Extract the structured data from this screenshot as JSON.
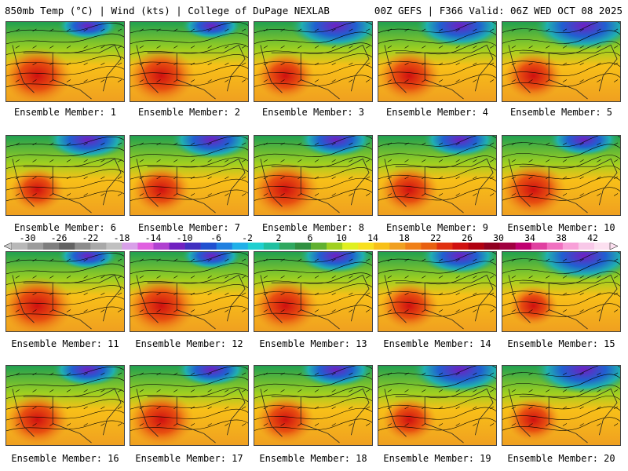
{
  "header": {
    "left": "850mb Temp (°C) | Wind (kts) | College of DuPage NEXLAB",
    "right": "00Z GEFS | F366 Valid: 06Z WED OCT 08 2025"
  },
  "colorbar": {
    "ticks": [
      "-30",
      "-26",
      "-22",
      "-18",
      "-14",
      "-10",
      "-6",
      "-2",
      "2",
      "6",
      "10",
      "14",
      "18",
      "22",
      "26",
      "30",
      "34",
      "38",
      "42"
    ],
    "colors": [
      "#b8b8b8",
      "#9c9c9c",
      "#7e7e7e",
      "#626262",
      "#8c8c8c",
      "#a8a8a8",
      "#c0c0c0",
      "#d8a0e8",
      "#e060e0",
      "#b040d0",
      "#7020c0",
      "#4030c0",
      "#2050d0",
      "#2080e0",
      "#20b0e8",
      "#20d0d0",
      "#20c0a0",
      "#30a860",
      "#309040",
      "#60b030",
      "#a0d020",
      "#e0f020",
      "#f8e020",
      "#f8c018",
      "#f0a020",
      "#f08018",
      "#e86010",
      "#e03010",
      "#d01010",
      "#b00010",
      "#900020",
      "#a00040",
      "#c00070",
      "#e040a0",
      "#f070c0",
      "#f8a0d8",
      "#f8c8e8",
      "#fce0f0"
    ]
  },
  "panels": [
    {
      "label": "Ensemble Member: 1",
      "cold": 0.3,
      "warm": 0.85
    },
    {
      "label": "Ensemble Member: 2",
      "cold": 0.3,
      "warm": 0.8
    },
    {
      "label": "Ensemble Member: 3",
      "cold": 0.75,
      "warm": 0.6
    },
    {
      "label": "Ensemble Member: 4",
      "cold": 0.7,
      "warm": 0.7
    },
    {
      "label": "Ensemble Member: 5",
      "cold": 0.85,
      "warm": 0.6
    },
    {
      "label": "Ensemble Member: 6",
      "cold": 0.6,
      "warm": 0.5
    },
    {
      "label": "Ensemble Member: 7",
      "cold": 0.6,
      "warm": 0.6
    },
    {
      "label": "Ensemble Member: 8",
      "cold": 0.5,
      "warm": 0.8
    },
    {
      "label": "Ensemble Member: 9",
      "cold": 0.5,
      "warm": 0.6
    },
    {
      "label": "Ensemble Member: 10",
      "cold": 0.45,
      "warm": 0.75
    },
    {
      "label": "Ensemble Member: 11",
      "cold": 0.3,
      "warm": 0.9
    },
    {
      "label": "Ensemble Member: 12",
      "cold": 0.3,
      "warm": 0.85
    },
    {
      "label": "Ensemble Member: 13",
      "cold": 0.5,
      "warm": 0.75
    },
    {
      "label": "Ensemble Member: 14",
      "cold": 0.55,
      "warm": 0.6
    },
    {
      "label": "Ensemble Member: 15",
      "cold": 0.85,
      "warm": 0.4
    },
    {
      "label": "Ensemble Member: 16",
      "cold": 0.45,
      "warm": 0.7
    },
    {
      "label": "Ensemble Member: 17",
      "cold": 0.45,
      "warm": 0.75
    },
    {
      "label": "Ensemble Member: 18",
      "cold": 0.5,
      "warm": 0.6
    },
    {
      "label": "Ensemble Member: 19",
      "cold": 0.8,
      "warm": 0.5
    },
    {
      "label": "Ensemble Member: 20",
      "cold": 0.85,
      "warm": 0.5
    }
  ]
}
